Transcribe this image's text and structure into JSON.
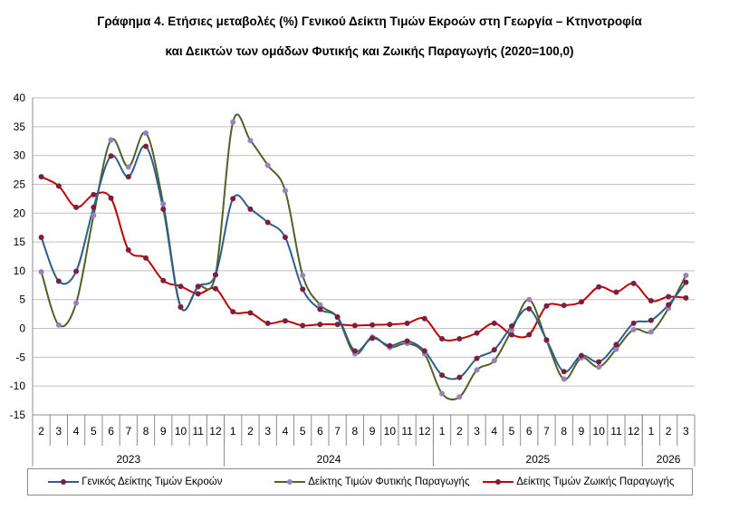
{
  "chart_data": {
    "type": "line",
    "title": "Γράφημα 4. Ετήσιες μεταβολές (%) Γενικού Δείκτη Τιμών Εκροών στη Γεωργία – Κτηνοτροφία",
    "subtitle": "και Δεικτών των ομάδων Φυτικής και Ζωικής Παραγωγής (2020=100,0)",
    "ylim": [
      -15,
      40
    ],
    "yticks": [
      -15,
      -10,
      -5,
      0,
      5,
      10,
      15,
      20,
      25,
      30,
      35,
      40
    ],
    "grid": true,
    "legend_position": "bottom",
    "x": [
      "2",
      "3",
      "4",
      "5",
      "6",
      "7",
      "8",
      "9",
      "10",
      "11",
      "12",
      "1",
      "2",
      "3",
      "4",
      "5",
      "6",
      "7",
      "8",
      "9",
      "10",
      "11",
      "12",
      "1",
      "2",
      "3",
      "4",
      "5",
      "6",
      "7",
      "8",
      "9",
      "10",
      "11",
      "12",
      "1",
      "2",
      "3"
    ],
    "year_groups": [
      {
        "label": "2023",
        "start": 0,
        "count": 11
      },
      {
        "label": "2024",
        "start": 11,
        "count": 12
      },
      {
        "label": "2025",
        "start": 23,
        "count": 12
      },
      {
        "label": "2026",
        "start": 35,
        "count": 3
      }
    ],
    "series": [
      {
        "name": "Γενικός Δείκτης Τιμών Εκροών",
        "color": "#2e5f8c",
        "marker": "#7a1f3d",
        "values": [
          15.8,
          8.2,
          9.9,
          21.0,
          29.9,
          26.3,
          31.6,
          20.7,
          3.7,
          7.3,
          9.3,
          22.5,
          20.7,
          18.4,
          15.8,
          6.8,
          3.3,
          2.0,
          -3.9,
          -1.7,
          -3.0,
          -2.2,
          -3.9,
          -8.1,
          -8.5,
          -5.2,
          -3.7,
          0.4,
          3.4,
          -2.0,
          -7.5,
          -4.7,
          -5.8,
          -2.8,
          0.9,
          1.4,
          4.1,
          8.0
        ]
      },
      {
        "name": "Δείκτης Τιμών Φυτικής Παραγωγής",
        "color": "#4f6228",
        "marker": "#9b7fc1",
        "values": [
          9.8,
          0.6,
          4.4,
          19.6,
          32.7,
          28.0,
          33.9,
          21.6,
          3.8,
          7.2,
          9.3,
          35.8,
          32.6,
          28.3,
          23.9,
          9.2,
          4.1,
          1.9,
          -4.4,
          -1.5,
          -3.3,
          -2.6,
          -4.4,
          -11.3,
          -11.9,
          -7.2,
          -5.6,
          -0.3,
          5.0,
          -2.1,
          -8.8,
          -5.1,
          -6.7,
          -3.6,
          -0.2,
          -0.6,
          3.5,
          9.2
        ]
      },
      {
        "name": "Δείκτης Τιμών Ζωικής Παραγωγής",
        "color": "#c00000",
        "marker": "#7a1f3d",
        "values": [
          26.3,
          24.7,
          21.0,
          23.2,
          22.6,
          13.6,
          12.2,
          8.3,
          7.3,
          6.0,
          6.9,
          2.9,
          2.7,
          0.9,
          1.3,
          0.5,
          0.7,
          0.7,
          0.5,
          0.6,
          0.7,
          0.9,
          1.7,
          -1.8,
          -1.8,
          -0.8,
          0.9,
          -1.1,
          -1.1,
          3.9,
          4.0,
          4.6,
          7.2,
          6.3,
          7.8,
          4.8,
          5.5,
          5.3
        ]
      }
    ]
  }
}
